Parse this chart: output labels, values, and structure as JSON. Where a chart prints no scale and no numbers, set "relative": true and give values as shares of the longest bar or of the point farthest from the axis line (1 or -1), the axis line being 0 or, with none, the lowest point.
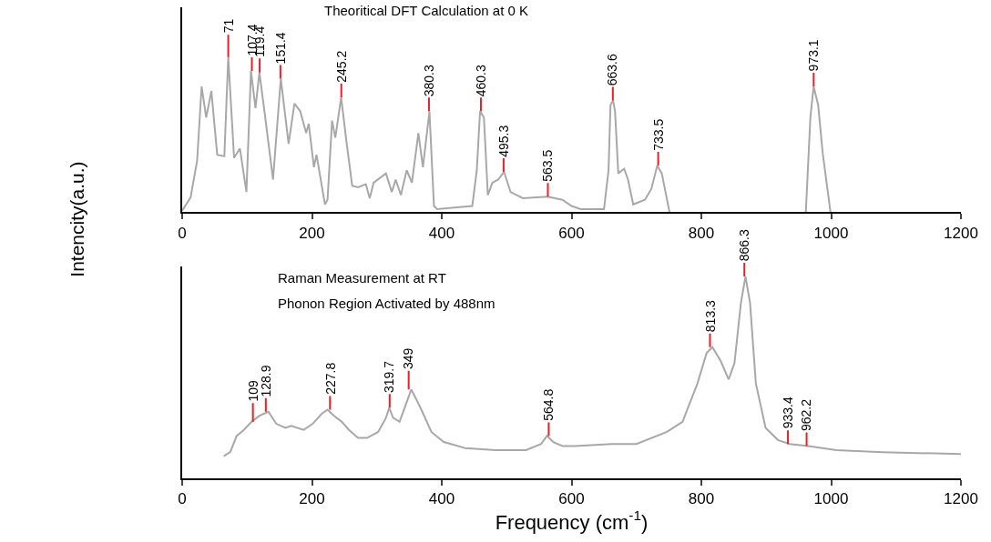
{
  "chart_data": [
    {
      "type": "line",
      "title": "Theoritical DFT Calculation at 0 K",
      "ylabel": "Intencity(a.u.)",
      "relative": true,
      "xlim": [
        0,
        1200
      ],
      "xticks": [
        0,
        200,
        400,
        600,
        800,
        1000,
        1200
      ],
      "marker": "none",
      "line_style": "solid",
      "series": [
        {
          "color": "#a8a8a8",
          "x": [
            0,
            13,
            23,
            30,
            37,
            45,
            54,
            65,
            71,
            80,
            89,
            99,
            106,
            113,
            119,
            128,
            140,
            152,
            164,
            173,
            182,
            191,
            195,
            203,
            207,
            220,
            224,
            231,
            236,
            245,
            253,
            262,
            271,
            283,
            289,
            295,
            314,
            323,
            329,
            337,
            346,
            354,
            364,
            371,
            381,
            388,
            393,
            447,
            454,
            459,
            465,
            471,
            478,
            487,
            496,
            506,
            525,
            563,
            586,
            600,
            614,
            650,
            657,
            660,
            664,
            667,
            672,
            681,
            687,
            695,
            713,
            723,
            732,
            739,
            751,
            850,
            961,
            968,
            973,
            980,
            987,
            999
          ],
          "values": [
            0.01,
            0.095,
            0.33,
            0.81,
            0.61,
            0.78,
            0.37,
            0.36,
            1.0,
            0.35,
            0.41,
            0.13,
            0.91,
            0.67,
            0.9,
            0.61,
            0.21,
            0.86,
            0.44,
            0.7,
            0.65,
            0.51,
            0.57,
            0.29,
            0.37,
            0.05,
            0.08,
            0.59,
            0.48,
            0.74,
            0.46,
            0.17,
            0.16,
            0.18,
            0.09,
            0.19,
            0.25,
            0.13,
            0.21,
            0.11,
            0.27,
            0.19,
            0.51,
            0.29,
            0.65,
            0.04,
            0.02,
            0.04,
            0.27,
            0.65,
            0.61,
            0.11,
            0.19,
            0.21,
            0.26,
            0.13,
            0.09,
            0.1,
            0.08,
            0.04,
            0.02,
            0.02,
            0.27,
            0.69,
            0.72,
            0.65,
            0.25,
            0.28,
            0.21,
            0.05,
            0.08,
            0.15,
            0.3,
            0.25,
            0.0,
            null,
            0.0,
            0.61,
            0.81,
            0.69,
            0.38,
            0.0
          ]
        }
      ],
      "annotations": [
        {
          "text": "71",
          "x": 71,
          "y": 1.0
        },
        {
          "text": "107.4",
          "x": 107.4,
          "y": 0.91
        },
        {
          "text": "119.4",
          "x": 119.4,
          "y": 0.9
        },
        {
          "text": "151.4",
          "x": 151.4,
          "y": 0.86
        },
        {
          "text": "245.2",
          "x": 245.2,
          "y": 0.74
        },
        {
          "text": "380.3",
          "x": 380.3,
          "y": 0.65
        },
        {
          "text": "460.3",
          "x": 460.3,
          "y": 0.65
        },
        {
          "text": "495.3",
          "x": 495.3,
          "y": 0.26
        },
        {
          "text": "563.5",
          "x": 563.5,
          "y": 0.1
        },
        {
          "text": "663.6",
          "x": 663.6,
          "y": 0.72
        },
        {
          "text": "733.5",
          "x": 733.5,
          "y": 0.3
        },
        {
          "text": "973.1",
          "x": 973.1,
          "y": 0.81
        }
      ]
    },
    {
      "type": "line",
      "title": "Raman Measurement at RT",
      "subtitle": "Phonon Region Activated by 488nm",
      "xlabel": "Frequency (cm$^{-1}$)",
      "relative": true,
      "xlim": [
        0,
        1200
      ],
      "xticks": [
        0,
        200,
        400,
        600,
        800,
        1000,
        1200
      ],
      "marker": "none",
      "line_style": "solid",
      "series": [
        {
          "color": "#a8a8a8",
          "x": [
            64,
            74,
            84,
            95,
            107,
            119,
            133,
            145,
            159,
            168,
            187,
            201,
            215,
            224,
            234,
            246,
            257,
            271,
            285,
            302,
            314,
            319,
            325,
            335,
            344,
            353,
            361,
            370,
            384,
            403,
            436,
            483,
            530,
            553,
            562,
            572,
            586,
            605,
            662,
            700,
            747,
            771,
            794,
            808,
            817,
            830,
            842,
            851,
            861,
            868,
            875,
            884,
            899,
            918,
            936,
            965,
            1008,
            1079,
            1200
          ],
          "values": [
            0.11,
            0.13,
            0.21,
            0.24,
            0.28,
            0.31,
            0.33,
            0.27,
            0.25,
            0.26,
            0.24,
            0.27,
            0.32,
            0.34,
            0.31,
            0.28,
            0.24,
            0.2,
            0.2,
            0.23,
            0.3,
            0.35,
            0.3,
            0.28,
            0.36,
            0.44,
            0.39,
            0.33,
            0.23,
            0.18,
            0.15,
            0.14,
            0.14,
            0.17,
            0.21,
            0.18,
            0.16,
            0.16,
            0.17,
            0.17,
            0.23,
            0.28,
            0.47,
            0.62,
            0.65,
            0.58,
            0.49,
            0.57,
            0.87,
            1.0,
            0.87,
            0.47,
            0.25,
            0.19,
            0.17,
            0.16,
            0.14,
            0.13,
            0.12
          ]
        }
      ],
      "annotations": [
        {
          "text": "109",
          "x": 109,
          "y": 0.28
        },
        {
          "text": "128.9",
          "x": 128.9,
          "y": 0.33
        },
        {
          "text": "227.8",
          "x": 227.8,
          "y": 0.34
        },
        {
          "text": "319.7",
          "x": 319.7,
          "y": 0.35
        },
        {
          "text": "349",
          "x": 349,
          "y": 0.44
        },
        {
          "text": "564.8",
          "x": 564.8,
          "y": 0.21
        },
        {
          "text": "813.3",
          "x": 813.3,
          "y": 0.65
        },
        {
          "text": "866.3",
          "x": 866.3,
          "y": 1.0
        },
        {
          "text": "933.4",
          "x": 933.4,
          "y": 0.17
        },
        {
          "text": "962.2",
          "x": 962.2,
          "y": 0.16
        }
      ]
    }
  ]
}
